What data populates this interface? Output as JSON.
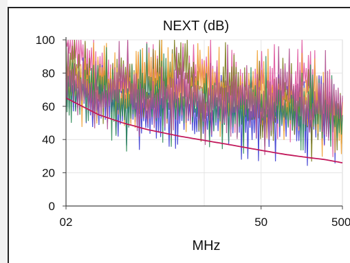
{
  "chart_data": {
    "type": "line",
    "title": "NEXT (dB)",
    "xlabel": "MHz",
    "ylabel": "",
    "ylim": [
      0,
      100
    ],
    "yticks": [
      "0",
      "20",
      "40",
      "60",
      "80",
      "100"
    ],
    "xticks": [
      "02",
      "50",
      "500"
    ],
    "x_scale": "log",
    "grid": true,
    "legend": "none",
    "limit_line": {
      "color": "#c2185b",
      "x": [
        0.2,
        0.5,
        1,
        2,
        5,
        10,
        20,
        50,
        100,
        200,
        300,
        500
      ],
      "y": [
        65,
        55,
        50,
        46,
        42,
        39.5,
        37,
        33.5,
        31,
        29,
        28,
        26
      ]
    },
    "series": [
      {
        "color": "#e0559f",
        "x": [
          0.2,
          0.5,
          1,
          2,
          5,
          10,
          20,
          50,
          100,
          200,
          300,
          500
        ],
        "y": [
          100,
          82,
          70,
          76,
          72,
          84,
          66,
          78,
          62,
          83,
          60,
          56
        ]
      },
      {
        "color": "#3a3ad0",
        "x": [
          0.2,
          0.5,
          1,
          2,
          5,
          10,
          20,
          50,
          100,
          200,
          300,
          500
        ],
        "y": [
          70,
          60,
          62,
          54,
          58,
          51,
          56,
          50,
          54,
          48,
          52,
          50
        ]
      },
      {
        "color": "#7a7a1a",
        "x": [
          0.2,
          0.5,
          1,
          2,
          5,
          10,
          20,
          50,
          100,
          200,
          300,
          500
        ],
        "y": [
          88,
          68,
          80,
          62,
          90,
          64,
          74,
          58,
          68,
          55,
          60,
          48
        ]
      },
      {
        "color": "#f0a030",
        "x": [
          0.2,
          0.5,
          1,
          2,
          5,
          10,
          20,
          50,
          100,
          200,
          300,
          500
        ],
        "y": [
          72,
          78,
          64,
          82,
          66,
          76,
          62,
          72,
          58,
          66,
          56,
          52
        ]
      },
      {
        "color": "#2e8b57",
        "x": [
          0.2,
          0.5,
          1,
          2,
          5,
          10,
          20,
          50,
          100,
          200,
          300,
          500
        ],
        "y": [
          66,
          74,
          58,
          70,
          60,
          66,
          57,
          64,
          56,
          60,
          53,
          50
        ]
      },
      {
        "color": "#b05090",
        "x": [
          0.2,
          0.5,
          1,
          2,
          5,
          10,
          20,
          50,
          100,
          200,
          300,
          500
        ],
        "y": [
          80,
          62,
          76,
          60,
          72,
          58,
          70,
          56,
          74,
          54,
          68,
          58
        ]
      }
    ]
  }
}
